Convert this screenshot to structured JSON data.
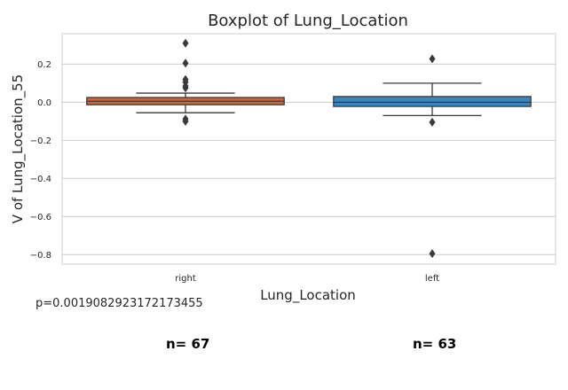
{
  "chart_data": {
    "type": "box",
    "title": "Boxplot of Lung_Location",
    "xlabel": "Lung_Location",
    "ylabel": "V of Lung_Location_55",
    "ylim": [
      -0.85,
      0.36
    ],
    "yticks": [
      0.2,
      0.0,
      -0.2,
      -0.4,
      -0.6,
      -0.8
    ],
    "ytick_labels": [
      "0.2",
      "0.0",
      "−0.2",
      "−0.4",
      "−0.6",
      "−0.8"
    ],
    "grid": true,
    "categories": [
      "right",
      "left"
    ],
    "boxes": [
      {
        "category": "right",
        "color": "#d65f3d",
        "whislo": -0.055,
        "q1": -0.013,
        "median": 0.005,
        "q3": 0.025,
        "whishi": 0.048,
        "fliers": [
          0.31,
          0.205,
          0.12,
          0.105,
          0.085,
          0.075,
          -0.088,
          -0.1
        ]
      },
      {
        "category": "left",
        "color": "#3d84b8",
        "whislo": -0.07,
        "q1": -0.022,
        "median": 0.0,
        "q3": 0.03,
        "whishi": 0.1,
        "fliers": [
          0.228,
          -0.105,
          -0.795
        ]
      }
    ]
  },
  "annotations": {
    "pvalue": "p=0.0019082923172173455",
    "counts": [
      "n= 67",
      "n= 63"
    ]
  },
  "colors": {
    "grid": "#cccccc",
    "box_edge": "#3a3a3a",
    "flier": "#3a3a3a"
  }
}
